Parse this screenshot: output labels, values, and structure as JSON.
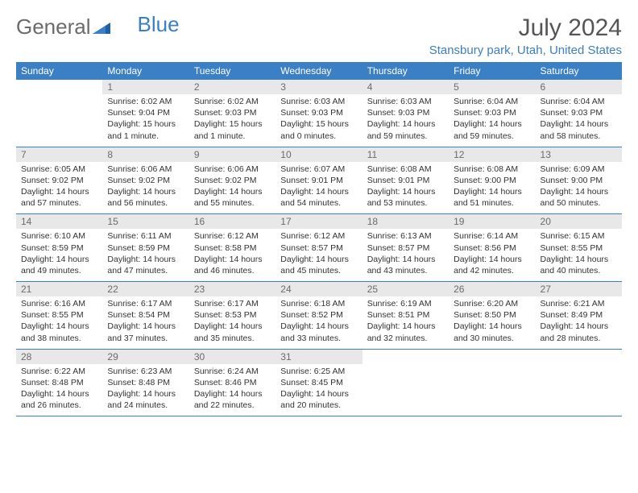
{
  "logo": {
    "text1": "General",
    "text2": "Blue"
  },
  "title": "July 2024",
  "location": "Stansbury park, Utah, United States",
  "colors": {
    "header_bg": "#3b7fc4",
    "header_text": "#ffffff",
    "day_num_bg": "#e8e8e8",
    "logo_gray": "#6b6b6b",
    "logo_blue": "#3b7fc4"
  },
  "weekdays": [
    "Sunday",
    "Monday",
    "Tuesday",
    "Wednesday",
    "Thursday",
    "Friday",
    "Saturday"
  ],
  "weeks": [
    [
      {
        "day": "",
        "sunrise": "",
        "sunset": "",
        "daylight": ""
      },
      {
        "day": "1",
        "sunrise": "Sunrise: 6:02 AM",
        "sunset": "Sunset: 9:04 PM",
        "daylight": "Daylight: 15 hours and 1 minute."
      },
      {
        "day": "2",
        "sunrise": "Sunrise: 6:02 AM",
        "sunset": "Sunset: 9:03 PM",
        "daylight": "Daylight: 15 hours and 1 minute."
      },
      {
        "day": "3",
        "sunrise": "Sunrise: 6:03 AM",
        "sunset": "Sunset: 9:03 PM",
        "daylight": "Daylight: 15 hours and 0 minutes."
      },
      {
        "day": "4",
        "sunrise": "Sunrise: 6:03 AM",
        "sunset": "Sunset: 9:03 PM",
        "daylight": "Daylight: 14 hours and 59 minutes."
      },
      {
        "day": "5",
        "sunrise": "Sunrise: 6:04 AM",
        "sunset": "Sunset: 9:03 PM",
        "daylight": "Daylight: 14 hours and 59 minutes."
      },
      {
        "day": "6",
        "sunrise": "Sunrise: 6:04 AM",
        "sunset": "Sunset: 9:03 PM",
        "daylight": "Daylight: 14 hours and 58 minutes."
      }
    ],
    [
      {
        "day": "7",
        "sunrise": "Sunrise: 6:05 AM",
        "sunset": "Sunset: 9:02 PM",
        "daylight": "Daylight: 14 hours and 57 minutes."
      },
      {
        "day": "8",
        "sunrise": "Sunrise: 6:06 AM",
        "sunset": "Sunset: 9:02 PM",
        "daylight": "Daylight: 14 hours and 56 minutes."
      },
      {
        "day": "9",
        "sunrise": "Sunrise: 6:06 AM",
        "sunset": "Sunset: 9:02 PM",
        "daylight": "Daylight: 14 hours and 55 minutes."
      },
      {
        "day": "10",
        "sunrise": "Sunrise: 6:07 AM",
        "sunset": "Sunset: 9:01 PM",
        "daylight": "Daylight: 14 hours and 54 minutes."
      },
      {
        "day": "11",
        "sunrise": "Sunrise: 6:08 AM",
        "sunset": "Sunset: 9:01 PM",
        "daylight": "Daylight: 14 hours and 53 minutes."
      },
      {
        "day": "12",
        "sunrise": "Sunrise: 6:08 AM",
        "sunset": "Sunset: 9:00 PM",
        "daylight": "Daylight: 14 hours and 51 minutes."
      },
      {
        "day": "13",
        "sunrise": "Sunrise: 6:09 AM",
        "sunset": "Sunset: 9:00 PM",
        "daylight": "Daylight: 14 hours and 50 minutes."
      }
    ],
    [
      {
        "day": "14",
        "sunrise": "Sunrise: 6:10 AM",
        "sunset": "Sunset: 8:59 PM",
        "daylight": "Daylight: 14 hours and 49 minutes."
      },
      {
        "day": "15",
        "sunrise": "Sunrise: 6:11 AM",
        "sunset": "Sunset: 8:59 PM",
        "daylight": "Daylight: 14 hours and 47 minutes."
      },
      {
        "day": "16",
        "sunrise": "Sunrise: 6:12 AM",
        "sunset": "Sunset: 8:58 PM",
        "daylight": "Daylight: 14 hours and 46 minutes."
      },
      {
        "day": "17",
        "sunrise": "Sunrise: 6:12 AM",
        "sunset": "Sunset: 8:57 PM",
        "daylight": "Daylight: 14 hours and 45 minutes."
      },
      {
        "day": "18",
        "sunrise": "Sunrise: 6:13 AM",
        "sunset": "Sunset: 8:57 PM",
        "daylight": "Daylight: 14 hours and 43 minutes."
      },
      {
        "day": "19",
        "sunrise": "Sunrise: 6:14 AM",
        "sunset": "Sunset: 8:56 PM",
        "daylight": "Daylight: 14 hours and 42 minutes."
      },
      {
        "day": "20",
        "sunrise": "Sunrise: 6:15 AM",
        "sunset": "Sunset: 8:55 PM",
        "daylight": "Daylight: 14 hours and 40 minutes."
      }
    ],
    [
      {
        "day": "21",
        "sunrise": "Sunrise: 6:16 AM",
        "sunset": "Sunset: 8:55 PM",
        "daylight": "Daylight: 14 hours and 38 minutes."
      },
      {
        "day": "22",
        "sunrise": "Sunrise: 6:17 AM",
        "sunset": "Sunset: 8:54 PM",
        "daylight": "Daylight: 14 hours and 37 minutes."
      },
      {
        "day": "23",
        "sunrise": "Sunrise: 6:17 AM",
        "sunset": "Sunset: 8:53 PM",
        "daylight": "Daylight: 14 hours and 35 minutes."
      },
      {
        "day": "24",
        "sunrise": "Sunrise: 6:18 AM",
        "sunset": "Sunset: 8:52 PM",
        "daylight": "Daylight: 14 hours and 33 minutes."
      },
      {
        "day": "25",
        "sunrise": "Sunrise: 6:19 AM",
        "sunset": "Sunset: 8:51 PM",
        "daylight": "Daylight: 14 hours and 32 minutes."
      },
      {
        "day": "26",
        "sunrise": "Sunrise: 6:20 AM",
        "sunset": "Sunset: 8:50 PM",
        "daylight": "Daylight: 14 hours and 30 minutes."
      },
      {
        "day": "27",
        "sunrise": "Sunrise: 6:21 AM",
        "sunset": "Sunset: 8:49 PM",
        "daylight": "Daylight: 14 hours and 28 minutes."
      }
    ],
    [
      {
        "day": "28",
        "sunrise": "Sunrise: 6:22 AM",
        "sunset": "Sunset: 8:48 PM",
        "daylight": "Daylight: 14 hours and 26 minutes."
      },
      {
        "day": "29",
        "sunrise": "Sunrise: 6:23 AM",
        "sunset": "Sunset: 8:48 PM",
        "daylight": "Daylight: 14 hours and 24 minutes."
      },
      {
        "day": "30",
        "sunrise": "Sunrise: 6:24 AM",
        "sunset": "Sunset: 8:46 PM",
        "daylight": "Daylight: 14 hours and 22 minutes."
      },
      {
        "day": "31",
        "sunrise": "Sunrise: 6:25 AM",
        "sunset": "Sunset: 8:45 PM",
        "daylight": "Daylight: 14 hours and 20 minutes."
      },
      {
        "day": "",
        "sunrise": "",
        "sunset": "",
        "daylight": ""
      },
      {
        "day": "",
        "sunrise": "",
        "sunset": "",
        "daylight": ""
      },
      {
        "day": "",
        "sunrise": "",
        "sunset": "",
        "daylight": ""
      }
    ]
  ]
}
